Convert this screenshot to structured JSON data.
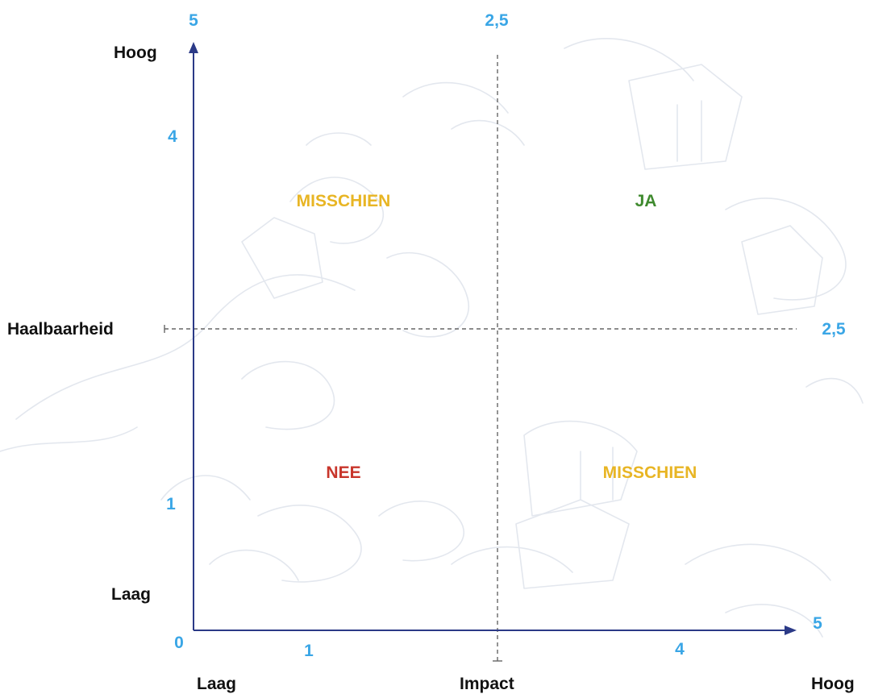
{
  "diagram": {
    "x_axis": {
      "title": "Impact",
      "low_label": "Laag",
      "high_label": "Hoog",
      "origin_tick": "0",
      "ticks": [
        {
          "label": "1",
          "value": 1
        },
        {
          "label": "4",
          "value": 4
        },
        {
          "label": "5",
          "value": 5
        }
      ],
      "midline_label": "2,5",
      "midline_value": 2.5,
      "range": [
        0,
        5
      ]
    },
    "y_axis": {
      "title": "Haalbaarheid",
      "low_label": "Laag",
      "high_label": "Hoog",
      "ticks": [
        {
          "label": "1",
          "value": 1
        },
        {
          "label": "4",
          "value": 4
        },
        {
          "label": "5",
          "value": 5
        }
      ],
      "midline_label": "2,5",
      "midline_value": 2.5,
      "range": [
        0,
        5
      ]
    },
    "quadrants": [
      {
        "id": "top-left",
        "label": "MISSCHIEN",
        "color": "#e8b524"
      },
      {
        "id": "top-right",
        "label": "JA",
        "color": "#3f8a2e"
      },
      {
        "id": "bottom-left",
        "label": "NEE",
        "color": "#c8352b"
      },
      {
        "id": "bottom-right",
        "label": "MISSCHIEN",
        "color": "#e8b524"
      }
    ],
    "colors": {
      "axis": "#2b3a87",
      "tick_label": "#3aa6e6",
      "axis_text": "#111111",
      "dashed_line": "#666666",
      "background_sketch": "#e3e7ee"
    }
  }
}
